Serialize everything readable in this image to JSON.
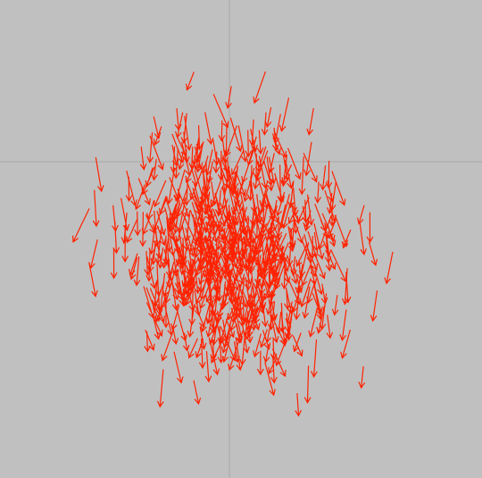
{
  "scene": {
    "background_color": "#c0c0c0",
    "axis_color": "#a9a9a9",
    "arrow_color": "#ff2200",
    "arrow_count": 650,
    "random_seed": 7
  }
}
